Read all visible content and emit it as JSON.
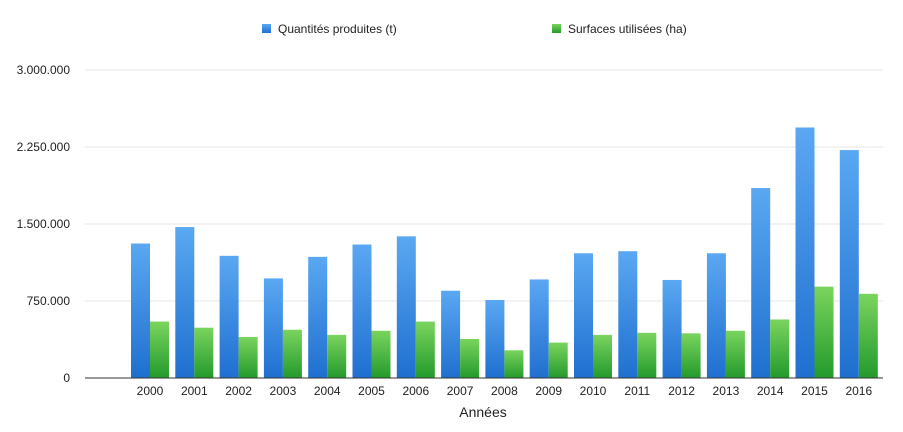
{
  "chart_data": {
    "type": "bar",
    "xlabel": "Années",
    "ylabel": "",
    "ylim": [
      0,
      3000000
    ],
    "yticks": [
      0,
      750000,
      1500000,
      2250000,
      3000000
    ],
    "ytick_labels": [
      "0",
      "750.000",
      "1.500.000",
      "2.250.000",
      "3.000.000"
    ],
    "grid": true,
    "legend_position": "top",
    "categories": [
      "2000",
      "2001",
      "2002",
      "2003",
      "2004",
      "2005",
      "2006",
      "2007",
      "2008",
      "2009",
      "2010",
      "2011",
      "2012",
      "2013",
      "2014",
      "2015",
      "2016"
    ],
    "series": [
      {
        "name": "Quantités produites (t)",
        "color": "#3a87e0",
        "values": [
          1310000,
          1470000,
          1190000,
          970000,
          1180000,
          1300000,
          1380000,
          850000,
          760000,
          960000,
          1215000,
          1235000,
          955000,
          1215000,
          1850000,
          2440000,
          2220000
        ]
      },
      {
        "name": "Surfaces utilisées (ha)",
        "color": "#3aa63a",
        "values": [
          550000,
          490000,
          400000,
          470000,
          420000,
          460000,
          550000,
          380000,
          270000,
          345000,
          420000,
          440000,
          435000,
          460000,
          570000,
          890000,
          820000
        ]
      }
    ]
  }
}
